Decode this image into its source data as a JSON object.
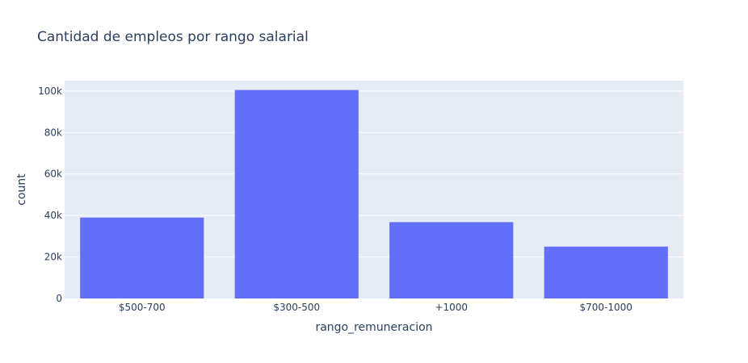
{
  "chart_data": {
    "type": "bar",
    "title": "Cantidad de empleos por rango salarial",
    "xlabel": "rango_remuneracion",
    "ylabel": "count",
    "categories": [
      "$500-700",
      "$300-500",
      "+1000",
      "$700-1000"
    ],
    "values": [
      39000,
      100500,
      36800,
      25000
    ],
    "ylim": [
      0,
      105000
    ],
    "yticks": [
      0,
      20000,
      40000,
      60000,
      80000,
      100000
    ],
    "ytick_labels": [
      "0",
      "20k",
      "40k",
      "60k",
      "80k",
      "100k"
    ],
    "grid": true,
    "colors": {
      "bar": "#636efa",
      "plot_bg": "#e5ecf6",
      "grid": "#ffffff",
      "text": "#2a3f5f"
    }
  }
}
